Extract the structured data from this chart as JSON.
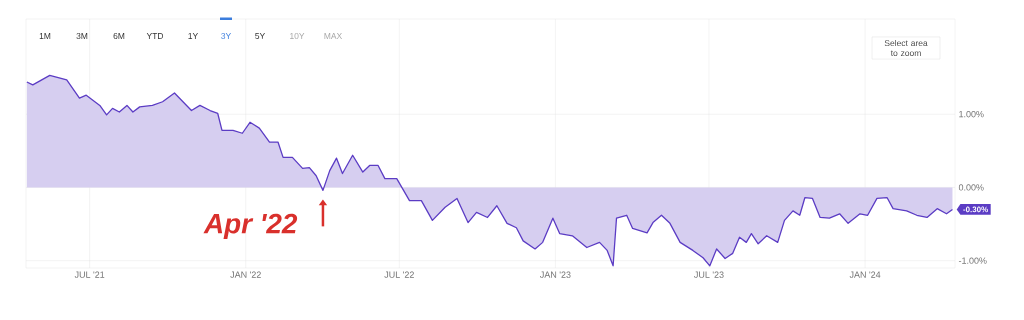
{
  "chart_data": {
    "type": "area",
    "x": [
      "2021-04-18",
      "2021-04-25",
      "2021-05-15",
      "2021-06-04",
      "2021-06-19",
      "2021-06-27",
      "2021-07-13",
      "2021-07-21",
      "2021-07-28",
      "2021-08-05",
      "2021-08-14",
      "2021-08-21",
      "2021-08-29",
      "2021-09-13",
      "2021-09-25",
      "2021-10-09",
      "2021-10-19",
      "2021-10-29",
      "2021-11-08",
      "2021-11-20",
      "2021-11-29",
      "2021-12-04",
      "2021-12-17",
      "2021-12-28",
      "2022-01-06",
      "2022-01-17",
      "2022-01-29",
      "2022-02-08",
      "2022-02-14",
      "2022-02-25",
      "2022-03-09",
      "2022-03-17",
      "2022-03-25",
      "2022-04-02",
      "2022-04-10",
      "2022-04-18",
      "2022-04-25",
      "2022-05-07",
      "2022-05-19",
      "2022-05-27",
      "2022-06-06",
      "2022-06-14",
      "2022-06-28",
      "2022-07-13",
      "2022-07-27",
      "2022-08-09",
      "2022-08-24",
      "2022-09-07",
      "2022-09-20",
      "2022-09-30",
      "2022-10-13",
      "2022-10-24",
      "2022-11-05",
      "2022-11-16",
      "2022-11-24",
      "2022-12-08",
      "2022-12-17",
      "2022-12-29",
      "2023-01-06",
      "2023-01-21",
      "2023-02-07",
      "2023-02-22",
      "2023-03-03",
      "2023-03-10",
      "2023-03-14",
      "2023-03-26",
      "2023-04-02",
      "2023-04-19",
      "2023-04-26",
      "2023-05-06",
      "2023-05-16",
      "2023-05-28",
      "2023-06-12",
      "2023-06-24",
      "2023-07-02",
      "2023-07-10",
      "2023-07-20",
      "2023-07-29",
      "2023-08-06",
      "2023-08-14",
      "2023-08-20",
      "2023-08-28",
      "2023-09-07",
      "2023-09-20",
      "2023-09-28",
      "2023-10-08",
      "2023-10-16",
      "2023-10-22",
      "2023-10-31",
      "2023-11-09",
      "2023-11-20",
      "2023-12-02",
      "2023-12-12",
      "2023-12-26",
      "2024-01-04",
      "2024-01-15",
      "2024-01-27",
      "2024-02-03",
      "2024-02-19",
      "2024-03-02",
      "2024-03-14",
      "2024-03-26",
      "2024-04-06",
      "2024-04-13"
    ],
    "values": [
      1.44,
      1.4,
      1.53,
      1.47,
      1.22,
      1.26,
      1.12,
      0.99,
      1.08,
      1.03,
      1.12,
      1.03,
      1.1,
      1.12,
      1.17,
      1.29,
      1.17,
      1.05,
      1.12,
      1.05,
      1.01,
      0.78,
      0.78,
      0.74,
      0.89,
      0.81,
      0.62,
      0.62,
      0.41,
      0.41,
      0.26,
      0.27,
      0.16,
      -0.04,
      0.23,
      0.4,
      0.19,
      0.44,
      0.21,
      0.3,
      0.3,
      0.12,
      0.12,
      -0.18,
      -0.18,
      -0.45,
      -0.27,
      -0.15,
      -0.48,
      -0.34,
      -0.41,
      -0.25,
      -0.49,
      -0.55,
      -0.73,
      -0.84,
      -0.75,
      -0.42,
      -0.63,
      -0.66,
      -0.82,
      -0.75,
      -0.86,
      -1.07,
      -0.42,
      -0.38,
      -0.56,
      -0.62,
      -0.48,
      -0.38,
      -0.49,
      -0.75,
      -0.86,
      -0.96,
      -1.07,
      -0.84,
      -0.97,
      -0.9,
      -0.68,
      -0.75,
      -0.63,
      -0.77,
      -0.66,
      -0.75,
      -0.45,
      -0.32,
      -0.38,
      -0.14,
      -0.15,
      -0.41,
      -0.42,
      -0.36,
      -0.49,
      -0.36,
      -0.38,
      -0.15,
      -0.14,
      -0.29,
      -0.32,
      -0.38,
      -0.41,
      -0.29,
      -0.36,
      -0.3
    ],
    "color": "#5b3cc4",
    "xlim": [
      "2021-04-17",
      "2024-04-16"
    ],
    "xticks": [
      {
        "value": "2021-07-01",
        "label": "JUL '21"
      },
      {
        "value": "2022-01-01",
        "label": "JAN '22"
      },
      {
        "value": "2022-07-01",
        "label": "JUL '22"
      },
      {
        "value": "2023-01-01",
        "label": "JAN '23"
      },
      {
        "value": "2023-07-01",
        "label": "JUL '23"
      },
      {
        "value": "2024-01-01",
        "label": "JAN '24"
      }
    ],
    "ylim": [
      -1.1,
      2.3
    ],
    "yticks": [
      {
        "value": -1,
        "label": "-1.00%"
      },
      {
        "value": 0,
        "label": "0.00%"
      },
      {
        "value": 1,
        "label": "1.00%"
      }
    ],
    "grid": true,
    "annotations": [
      "1M",
      "3M",
      "6M",
      "YTD",
      "1Y",
      "3Y",
      "5Y",
      "10Y",
      "MAX",
      "Select area to zoom",
      {
        "text": "Apr '22",
        "x": "2022-04-02",
        "y": -0.04
      },
      {
        "text": "-0.30%",
        "x": "2024-04-13",
        "y": -0.3
      }
    ]
  }
}
